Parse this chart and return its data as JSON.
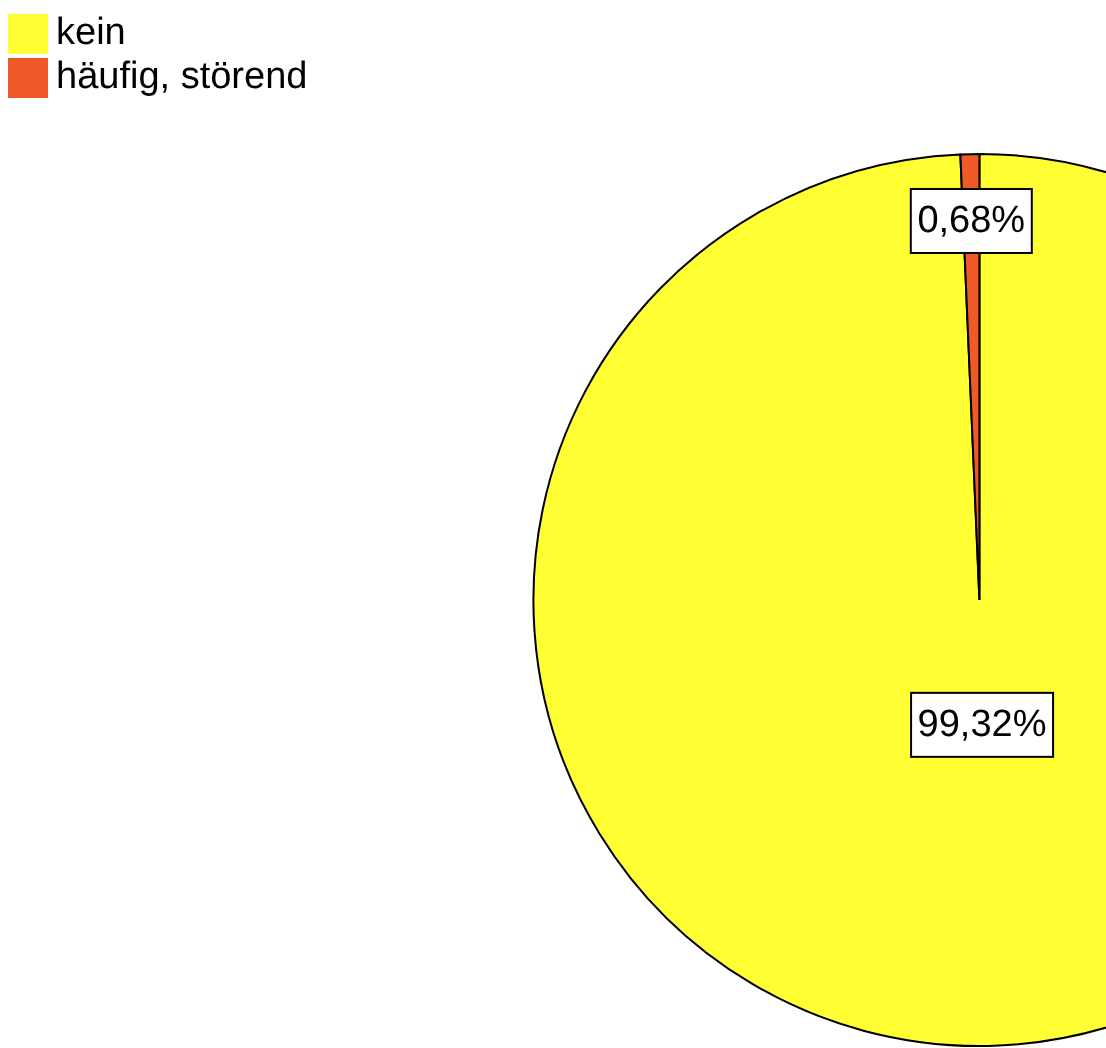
{
  "chart_data": {
    "type": "pie",
    "categories": [
      "kein",
      "häufig, störend"
    ],
    "values": [
      99.32,
      0.68
    ],
    "colors": [
      "#ffff33",
      "#f05a28"
    ],
    "value_labels": [
      "99,32%",
      "0,68%"
    ],
    "legend": "top left"
  }
}
